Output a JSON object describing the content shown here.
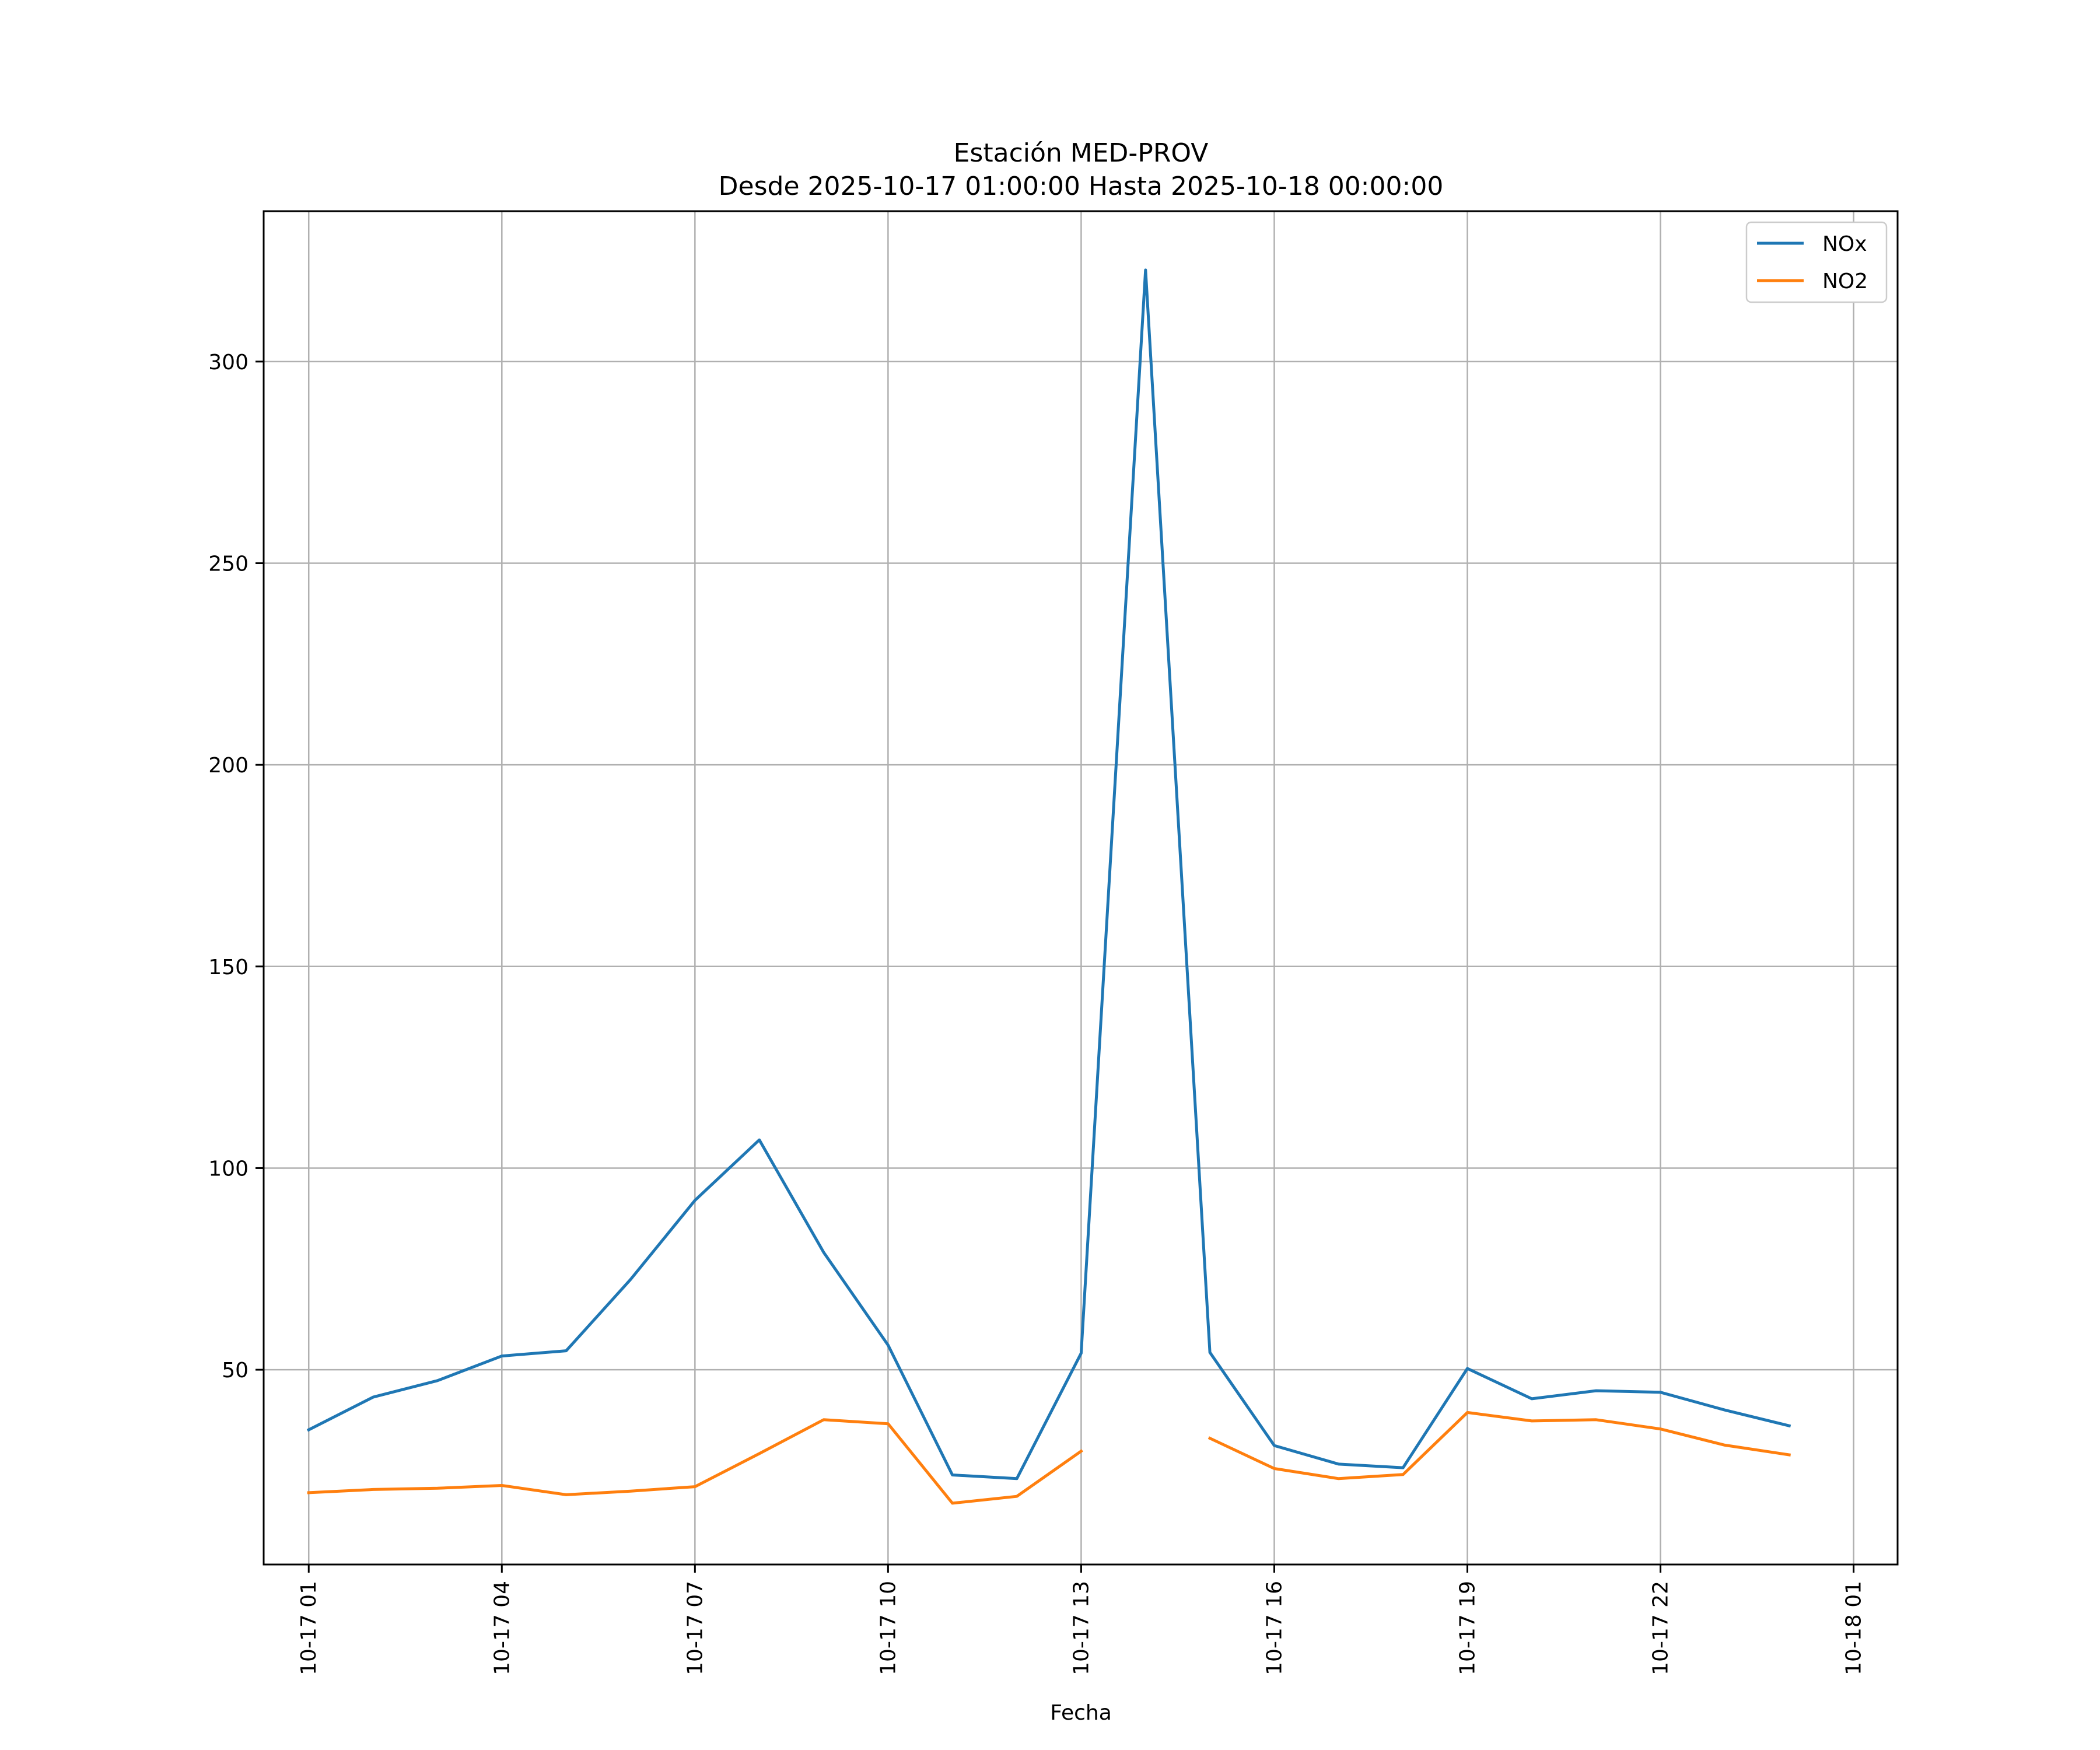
{
  "chart_data": {
    "type": "line",
    "title": [
      "Estación MED-PROV",
      "Desde 2025-10-17 01:00:00 Hasta 2025-10-18 00:00:00"
    ],
    "xlabel": "Fecha",
    "ylabel": "",
    "x": [
      "2025-10-17 01:00",
      "2025-10-17 02:00",
      "2025-10-17 03:00",
      "2025-10-17 04:00",
      "2025-10-17 05:00",
      "2025-10-17 06:00",
      "2025-10-17 07:00",
      "2025-10-17 08:00",
      "2025-10-17 09:00",
      "2025-10-17 10:00",
      "2025-10-17 11:00",
      "2025-10-17 12:00",
      "2025-10-17 13:00",
      "2025-10-17 14:00",
      "2025-10-17 15:00",
      "2025-10-17 16:00",
      "2025-10-17 17:00",
      "2025-10-17 18:00",
      "2025-10-17 19:00",
      "2025-10-17 20:00",
      "2025-10-17 21:00",
      "2025-10-17 22:00",
      "2025-10-17 23:00",
      "2025-10-18 00:00"
    ],
    "xlim": [
      "2025-10-17 00:18",
      "2025-10-18 01:41"
    ],
    "ylim": [
      1.7,
      337.3
    ],
    "xticks": [
      "2025-10-17 01:00",
      "2025-10-17 04:00",
      "2025-10-17 07:00",
      "2025-10-17 10:00",
      "2025-10-17 13:00",
      "2025-10-17 16:00",
      "2025-10-17 19:00",
      "2025-10-17 22:00",
      "2025-10-18 01:00"
    ],
    "xtick_labels": [
      "10-17 01",
      "10-17 04",
      "10-17 07",
      "10-17 10",
      "10-17 13",
      "10-17 16",
      "10-17 19",
      "10-17 22",
      "10-18 01"
    ],
    "yticks": [
      50,
      100,
      150,
      200,
      250,
      300
    ],
    "ytick_labels": [
      "50",
      "100",
      "150",
      "200",
      "250",
      "300"
    ],
    "grid": true,
    "legend_position": "top-right",
    "series": [
      {
        "name": "NOx",
        "color": "#1f77b4",
        "values": [
          35.1,
          43.2,
          47.3,
          53.4,
          54.7,
          72.4,
          92.0,
          107.0,
          79.1,
          56.1,
          23.9,
          23.0,
          54.1,
          322.7,
          54.3,
          31.2,
          26.6,
          25.7,
          50.3,
          42.8,
          44.8,
          44.4,
          40.0,
          36.1
        ]
      },
      {
        "name": "NO2",
        "color": "#ff7f0e",
        "values": [
          19.5,
          20.3,
          20.6,
          21.3,
          19.0,
          19.9,
          21.0,
          29.2,
          37.6,
          36.6,
          16.9,
          18.6,
          29.8,
          null,
          33.0,
          25.5,
          23.0,
          24.0,
          39.4,
          37.3,
          37.6,
          35.3,
          31.3,
          28.9
        ]
      }
    ]
  }
}
